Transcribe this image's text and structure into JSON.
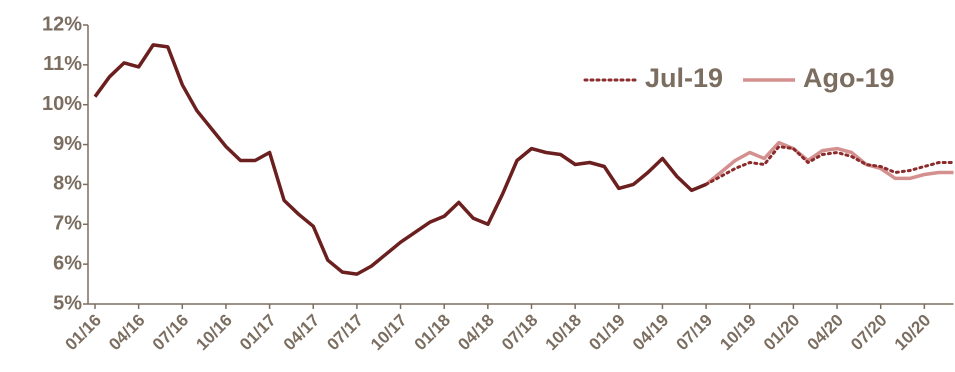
{
  "chart_data": {
    "type": "line",
    "categories": [
      "01/16",
      null,
      null,
      "04/16",
      null,
      null,
      "07/16",
      null,
      null,
      "10/16",
      null,
      null,
      "01/17",
      null,
      null,
      "04/17",
      null,
      null,
      "07/17",
      null,
      null,
      "10/17",
      null,
      null,
      "01/18",
      null,
      null,
      "04/18",
      null,
      null,
      "07/18",
      null,
      null,
      "10/18",
      null,
      null,
      "01/19",
      null,
      null,
      "04/19",
      null,
      null,
      "07/19",
      null,
      null,
      "10/19",
      null,
      null,
      "01/20",
      null,
      null,
      "04/20",
      null,
      null,
      "07/20",
      null,
      null,
      "10/20",
      null,
      null
    ],
    "series": [
      {
        "color": "#6b1f1f",
        "dash": "solid",
        "values": [
          10.2,
          10.7,
          11.05,
          10.95,
          11.5,
          11.45,
          10.5,
          9.85,
          9.4,
          8.95,
          8.6,
          8.6,
          8.8,
          7.6,
          7.25,
          6.95,
          6.1,
          5.8,
          5.75,
          5.95,
          6.25,
          6.55,
          6.8,
          7.05,
          7.2,
          7.55,
          7.15,
          7.0,
          7.75,
          8.6,
          8.9,
          8.8,
          8.75,
          8.5,
          8.55,
          8.45,
          7.9,
          8.0,
          8.3,
          8.65,
          8.2,
          7.85,
          8.0,
          null,
          null,
          null,
          null,
          null,
          null,
          null,
          null,
          null,
          null,
          null,
          null,
          null,
          null,
          null,
          null,
          null
        ]
      },
      {
        "name": "Jul-19",
        "color": "#8b2b2b",
        "dash": "dotted",
        "values": [
          null,
          null,
          null,
          null,
          null,
          null,
          null,
          null,
          null,
          null,
          null,
          null,
          null,
          null,
          null,
          null,
          null,
          null,
          null,
          null,
          null,
          null,
          null,
          null,
          null,
          null,
          null,
          null,
          null,
          null,
          null,
          null,
          null,
          null,
          null,
          null,
          null,
          null,
          null,
          null,
          null,
          null,
          8.0,
          8.2,
          8.4,
          8.55,
          8.5,
          8.95,
          8.9,
          8.55,
          8.75,
          8.8,
          8.7,
          8.5,
          8.45,
          8.3,
          8.35,
          8.45,
          8.55,
          8.55
        ]
      },
      {
        "name": "Ago-19",
        "color": "#d4908f",
        "dash": "solid",
        "values": [
          null,
          null,
          null,
          null,
          null,
          null,
          null,
          null,
          null,
          null,
          null,
          null,
          null,
          null,
          null,
          null,
          null,
          null,
          null,
          null,
          null,
          null,
          null,
          null,
          null,
          null,
          null,
          null,
          null,
          null,
          null,
          null,
          null,
          null,
          null,
          null,
          null,
          null,
          null,
          null,
          null,
          null,
          8.0,
          8.3,
          8.6,
          8.8,
          8.65,
          9.05,
          8.9,
          8.6,
          8.85,
          8.9,
          8.8,
          8.5,
          8.4,
          8.15,
          8.15,
          8.25,
          8.3,
          8.3
        ]
      }
    ],
    "ylim": [
      5,
      12
    ],
    "yticks": [
      {
        "value": 5,
        "label": "5%"
      },
      {
        "value": 6,
        "label": "6%"
      },
      {
        "value": 7,
        "label": "7%"
      },
      {
        "value": 8,
        "label": "8%"
      },
      {
        "value": 9,
        "label": "9%"
      },
      {
        "value": 10,
        "label": "10%"
      },
      {
        "value": 11,
        "label": "11%"
      },
      {
        "value": 12,
        "label": "12%"
      }
    ],
    "grid": false,
    "legend": "upper right"
  }
}
